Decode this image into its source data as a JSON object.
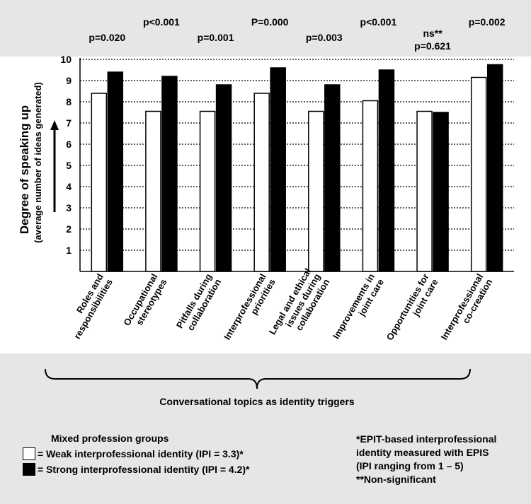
{
  "chart_data": {
    "type": "bar",
    "title": "",
    "ylabel": "Degree of speaking up",
    "ylabel_sub": "(average number of  ideas generated)",
    "xlabel": "Conversational topics as identity triggers",
    "ylim": [
      0,
      10
    ],
    "yticks": [
      1,
      2,
      3,
      4,
      5,
      6,
      7,
      8,
      9,
      10
    ],
    "grid": true,
    "categories": [
      [
        "Roles and",
        "responsibilities"
      ],
      [
        "Occupational",
        "stereotypes"
      ],
      [
        "Pitfalls during",
        "collaboration"
      ],
      [
        "Interprofessional",
        "priorities"
      ],
      [
        "Legal and ethical",
        "issues during",
        "collaboration"
      ],
      [
        "Improvements in",
        "joint care"
      ],
      [
        "Opportunities for",
        "joint care"
      ],
      [
        "Interprofessional",
        "co-creation"
      ]
    ],
    "series": [
      {
        "name": "Weak interprofessional identity (IPI = 3.3)*",
        "color": "#ffffff",
        "values": [
          8.4,
          7.55,
          7.55,
          8.4,
          7.55,
          8.05,
          7.55,
          9.15
        ]
      },
      {
        "name": "Strong interprofessional identity (IPI = 4.2)*",
        "color": "#000000",
        "values": [
          9.4,
          9.2,
          8.8,
          9.6,
          8.8,
          9.5,
          7.5,
          9.75
        ]
      }
    ],
    "pvalues": [
      [
        "p=0.020"
      ],
      [
        "p<0.001"
      ],
      [
        "p=0.001"
      ],
      [
        "P=0.000"
      ],
      [
        "p=0.003"
      ],
      [
        "p<0.001"
      ],
      [
        "ns**",
        "p=0.621"
      ],
      [
        "p=0.002"
      ]
    ]
  },
  "legend": {
    "title": "Mixed profession groups",
    "weak_label": "= Weak interprofessional identity (IPI = 3.3)*",
    "strong_label": "= Strong interprofessional identity (IPI = 4.2)*"
  },
  "footnotes": [
    "*EPIT-based interprofessional",
    " identity measured with EPIS",
    " (IPI ranging from 1 – 5)",
    "**Non-significant"
  ]
}
